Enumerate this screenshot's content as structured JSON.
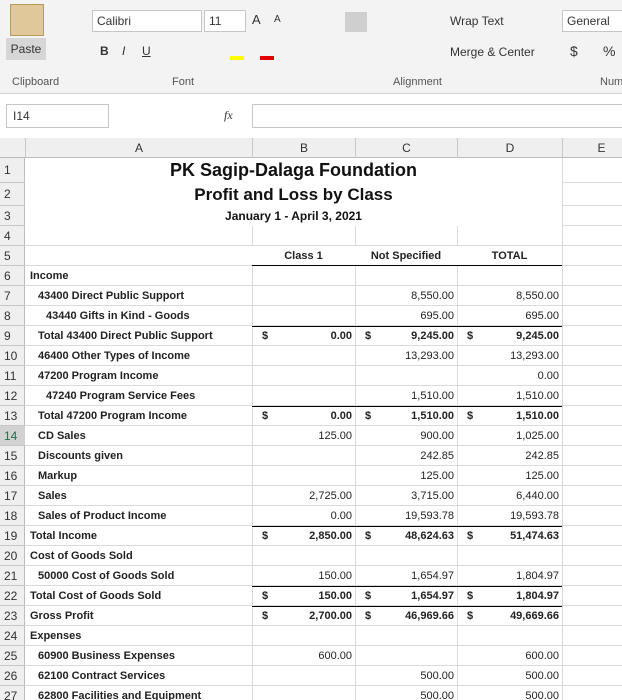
{
  "ribbon": {
    "font_name": "Calibri",
    "font_size": "11",
    "grow": "A",
    "shrink": "A",
    "paste": "Paste",
    "font_buttons": [
      "B",
      "I",
      "U"
    ],
    "wrap_text": "Wrap Text",
    "merge_center": "Merge & Center",
    "number_format": "General",
    "currency": "$",
    "percent": "%",
    "groups": [
      "Clipboard",
      "Font",
      "Alignment",
      "Num"
    ]
  },
  "formula_bar": {
    "name_box": "I14",
    "fx": "fx"
  },
  "columns": [
    "A",
    "B",
    "C",
    "D",
    "E"
  ],
  "row_numbers": [
    1,
    2,
    3,
    4,
    5,
    6,
    7,
    8,
    9,
    10,
    11,
    12,
    13,
    14,
    15,
    16,
    17,
    18,
    19,
    20,
    21,
    22,
    23,
    24,
    25,
    26,
    27
  ],
  "report": {
    "title": "PK Sagip-Dalaga Foundation",
    "subtitle": "Profit and Loss by Class",
    "date": "January 1 - April 3, 2021",
    "headers": [
      "Class 1",
      "Not Specified",
      "TOTAL"
    ],
    "rows": [
      {
        "row": 6,
        "label": "Income",
        "indent": 0,
        "bold": false,
        "rule": false,
        "cells": [
          null,
          null,
          null,
          null,
          null,
          null
        ]
      },
      {
        "row": 7,
        "label": "43400 Direct Public Support",
        "indent": 1,
        "bold": false,
        "rule": false,
        "cells": [
          null,
          null,
          null,
          "8,550.00",
          null,
          "8,550.00"
        ]
      },
      {
        "row": 8,
        "label": "43440 Gifts in Kind - Goods",
        "indent": 2,
        "bold": false,
        "rule": false,
        "cells": [
          null,
          null,
          null,
          "695.00",
          null,
          "695.00"
        ]
      },
      {
        "row": 9,
        "label": "Total 43400 Direct Public Support",
        "indent": 1,
        "bold": true,
        "rule": true,
        "cells": [
          "$",
          "0.00",
          "$",
          "9,245.00",
          "$",
          "9,245.00"
        ]
      },
      {
        "row": 10,
        "label": "46400 Other Types of Income",
        "indent": 1,
        "bold": false,
        "rule": false,
        "cells": [
          null,
          null,
          null,
          "13,293.00",
          null,
          "13,293.00"
        ]
      },
      {
        "row": 11,
        "label": "47200 Program Income",
        "indent": 1,
        "bold": false,
        "rule": false,
        "cells": [
          null,
          null,
          null,
          null,
          null,
          "0.00"
        ]
      },
      {
        "row": 12,
        "label": "47240 Program Service Fees",
        "indent": 2,
        "bold": false,
        "rule": false,
        "cells": [
          null,
          null,
          null,
          "1,510.00",
          null,
          "1,510.00"
        ]
      },
      {
        "row": 13,
        "label": "Total 47200 Program Income",
        "indent": 1,
        "bold": true,
        "rule": true,
        "cells": [
          "$",
          "0.00",
          "$",
          "1,510.00",
          "$",
          "1,510.00"
        ]
      },
      {
        "row": 14,
        "label": "CD Sales",
        "indent": 1,
        "bold": false,
        "rule": false,
        "cells": [
          null,
          "125.00",
          null,
          "900.00",
          null,
          "1,025.00"
        ]
      },
      {
        "row": 15,
        "label": "Discounts given",
        "indent": 1,
        "bold": false,
        "rule": false,
        "cells": [
          null,
          null,
          null,
          "242.85",
          null,
          "242.85"
        ]
      },
      {
        "row": 16,
        "label": "Markup",
        "indent": 1,
        "bold": false,
        "rule": false,
        "cells": [
          null,
          null,
          null,
          "125.00",
          null,
          "125.00"
        ]
      },
      {
        "row": 17,
        "label": "Sales",
        "indent": 1,
        "bold": false,
        "rule": false,
        "cells": [
          null,
          "2,725.00",
          null,
          "3,715.00",
          null,
          "6,440.00"
        ]
      },
      {
        "row": 18,
        "label": "Sales of Product Income",
        "indent": 1,
        "bold": false,
        "rule": false,
        "cells": [
          null,
          "0.00",
          null,
          "19,593.78",
          null,
          "19,593.78"
        ]
      },
      {
        "row": 19,
        "label": "Total Income",
        "indent": 0,
        "bold": true,
        "rule": true,
        "cells": [
          "$",
          "2,850.00",
          "$",
          "48,624.63",
          "$",
          "51,474.63"
        ]
      },
      {
        "row": 20,
        "label": "Cost of Goods Sold",
        "indent": 0,
        "bold": false,
        "rule": false,
        "cells": [
          null,
          null,
          null,
          null,
          null,
          null
        ]
      },
      {
        "row": 21,
        "label": "50000 Cost of Goods Sold",
        "indent": 1,
        "bold": false,
        "rule": false,
        "cells": [
          null,
          "150.00",
          null,
          "1,654.97",
          null,
          "1,804.97"
        ]
      },
      {
        "row": 22,
        "label": "Total Cost of Goods Sold",
        "indent": 0,
        "bold": true,
        "rule": true,
        "cells": [
          "$",
          "150.00",
          "$",
          "1,654.97",
          "$",
          "1,804.97"
        ]
      },
      {
        "row": 23,
        "label": "Gross Profit",
        "indent": 0,
        "bold": true,
        "rule": true,
        "cells": [
          "$",
          "2,700.00",
          "$",
          "46,969.66",
          "$",
          "49,669.66"
        ]
      },
      {
        "row": 24,
        "label": "Expenses",
        "indent": 0,
        "bold": false,
        "rule": false,
        "cells": [
          null,
          null,
          null,
          null,
          null,
          null
        ]
      },
      {
        "row": 25,
        "label": "60900 Business Expenses",
        "indent": 1,
        "bold": false,
        "rule": false,
        "cells": [
          null,
          "600.00",
          null,
          null,
          null,
          "600.00"
        ]
      },
      {
        "row": 26,
        "label": "62100 Contract Services",
        "indent": 1,
        "bold": false,
        "rule": false,
        "cells": [
          null,
          null,
          null,
          "500.00",
          null,
          "500.00"
        ]
      },
      {
        "row": 27,
        "label": "62800 Facilities and Equipment",
        "indent": 1,
        "bold": false,
        "rule": false,
        "cells": [
          null,
          null,
          null,
          "500.00",
          null,
          "500.00"
        ]
      }
    ]
  }
}
